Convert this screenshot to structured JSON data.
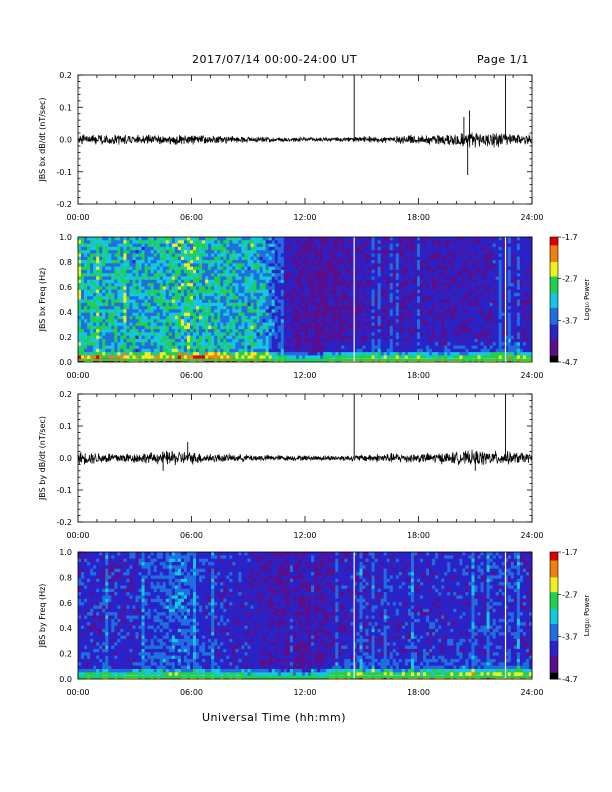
{
  "header": {
    "date_range": "2017/07/14  00:00-24:00 UT",
    "page": "Page 1/1"
  },
  "footer": {
    "xlabel": "Universal Time (hh:mm)"
  },
  "colors": {
    "trace": "#000000",
    "spectrogram_background": "#2a1870",
    "colormap": [
      "#000000",
      "#5a0f8f",
      "#2a23c8",
      "#1f6fe0",
      "#15c8e0",
      "#20d050",
      "#f0f020",
      "#f08010",
      "#e00000"
    ]
  },
  "chart_data": [
    {
      "type": "line",
      "id": "bx-dbdt",
      "ylabel": "JBS bx dB/dt (nT/sec)",
      "x_ticks": [
        "00:00",
        "06:00",
        "12:00",
        "18:00",
        "24:00"
      ],
      "xlim_hours": [
        0,
        24
      ],
      "ylim": [
        -0.2,
        0.2
      ],
      "y_ticks": [
        "0.2",
        "0.1",
        "0.0",
        "-0.1",
        "-0.2"
      ],
      "y_tick_values": [
        0.2,
        0.1,
        0.0,
        -0.1,
        -0.2
      ],
      "noise_envelope": {
        "hours": [
          0,
          1,
          2,
          3,
          4,
          5,
          6,
          7,
          8,
          9,
          10,
          11,
          12,
          13,
          14,
          15,
          16,
          17,
          18,
          19,
          20,
          21,
          22,
          23,
          24
        ],
        "amplitude": [
          0.012,
          0.012,
          0.012,
          0.012,
          0.012,
          0.014,
          0.012,
          0.01,
          0.009,
          0.008,
          0.007,
          0.006,
          0.006,
          0.006,
          0.006,
          0.007,
          0.009,
          0.011,
          0.012,
          0.014,
          0.018,
          0.022,
          0.02,
          0.015,
          0.012
        ]
      },
      "spikes": [
        {
          "hour": 14.6,
          "value": 0.2
        },
        {
          "hour": 20.4,
          "value": 0.07
        },
        {
          "hour": 20.6,
          "value": -0.11
        },
        {
          "hour": 20.7,
          "value": 0.09
        },
        {
          "hour": 22.6,
          "value": 0.2
        }
      ]
    },
    {
      "type": "heatmap",
      "id": "bx-spectrogram",
      "ylabel": "JBS bx Freq (Hz)",
      "x_ticks": [
        "00:00",
        "06:00",
        "12:00",
        "18:00",
        "24:00"
      ],
      "xlim_hours": [
        0,
        24
      ],
      "ylim": [
        0.0,
        1.0
      ],
      "y_ticks": [
        "1.0",
        "0.8",
        "0.6",
        "0.4",
        "0.2",
        "0.0"
      ],
      "y_tick_values": [
        1.0,
        0.8,
        0.6,
        0.4,
        0.2,
        0.0
      ],
      "colorbar": {
        "label": "Log₁₀ Power",
        "min": -4.7,
        "max": -1.7,
        "ticks": [
          "-1.7",
          "-2.7",
          "-3.7",
          "-4.7"
        ],
        "tick_values": [
          -1.7,
          -2.7,
          -3.7,
          -4.7
        ]
      },
      "data_gaps_hours": [
        14.6,
        22.6
      ],
      "activity_by_hour": [
        0.55,
        0.6,
        0.58,
        0.55,
        0.58,
        0.62,
        0.65,
        0.6,
        0.58,
        0.55,
        0.5,
        0.25,
        0.2,
        0.2,
        0.22,
        0.25,
        0.22,
        0.22,
        0.24,
        0.25,
        0.25,
        0.25,
        0.28,
        0.28,
        0.25
      ]
    },
    {
      "type": "line",
      "id": "by-dbdt",
      "ylabel": "JBS by dB/dt (nT/sec)",
      "x_ticks": [
        "00:00",
        "06:00",
        "12:00",
        "18:00",
        "24:00"
      ],
      "xlim_hours": [
        0,
        24
      ],
      "ylim": [
        -0.2,
        0.2
      ],
      "y_ticks": [
        "0.2",
        "0.1",
        "0.0",
        "-0.1",
        "-0.2"
      ],
      "y_tick_values": [
        0.2,
        0.1,
        0.0,
        -0.1,
        -0.2
      ],
      "noise_envelope": {
        "hours": [
          0,
          1,
          2,
          3,
          4,
          5,
          6,
          7,
          8,
          9,
          10,
          11,
          12,
          13,
          14,
          15,
          16,
          17,
          18,
          19,
          20,
          21,
          22,
          23,
          24
        ],
        "amplitude": [
          0.016,
          0.015,
          0.014,
          0.013,
          0.014,
          0.02,
          0.016,
          0.012,
          0.01,
          0.009,
          0.008,
          0.007,
          0.007,
          0.007,
          0.007,
          0.009,
          0.012,
          0.013,
          0.012,
          0.014,
          0.016,
          0.02,
          0.018,
          0.016,
          0.012
        ]
      },
      "spikes": [
        {
          "hour": 4.5,
          "value": -0.04
        },
        {
          "hour": 5.8,
          "value": 0.05
        },
        {
          "hour": 14.6,
          "value": 0.2
        },
        {
          "hour": 22.6,
          "value": 0.2
        },
        {
          "hour": 21.0,
          "value": -0.04
        }
      ]
    },
    {
      "type": "heatmap",
      "id": "by-spectrogram",
      "ylabel": "JBS by Freq (Hz)",
      "x_ticks": [
        "00:00",
        "06:00",
        "12:00",
        "18:00",
        "24:00"
      ],
      "xlim_hours": [
        0,
        24
      ],
      "ylim": [
        0.0,
        1.0
      ],
      "y_ticks": [
        "1.0",
        "0.8",
        "0.6",
        "0.4",
        "0.2",
        "0.0"
      ],
      "y_tick_values": [
        1.0,
        0.8,
        0.6,
        0.4,
        0.2,
        0.0
      ],
      "colorbar": {
        "label": "Log₁₀ Power",
        "min": -4.7,
        "max": -1.7,
        "ticks": [
          "-1.7",
          "-2.7",
          "-3.7",
          "-4.7"
        ],
        "tick_values": [
          -1.7,
          -2.7,
          -3.7,
          -4.7
        ]
      },
      "data_gaps_hours": [
        14.6,
        22.6
      ],
      "activity_by_hour": [
        0.3,
        0.3,
        0.3,
        0.3,
        0.35,
        0.42,
        0.38,
        0.3,
        0.3,
        0.28,
        0.25,
        0.22,
        0.2,
        0.22,
        0.28,
        0.3,
        0.28,
        0.3,
        0.3,
        0.3,
        0.3,
        0.3,
        0.32,
        0.32,
        0.28
      ]
    }
  ]
}
